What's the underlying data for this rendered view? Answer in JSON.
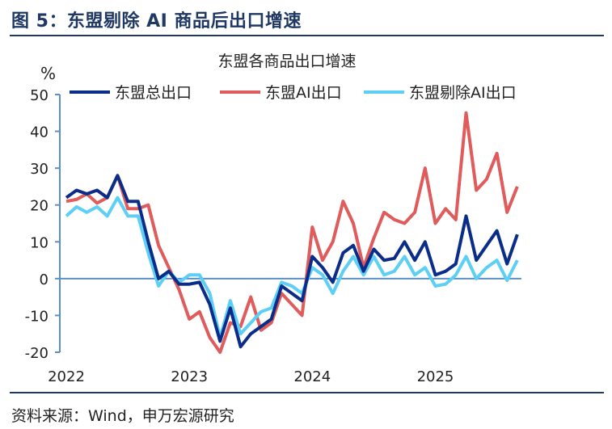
{
  "figure_title": "图 5：东盟剔除 AI 商品后出口增速",
  "source": "资料来源：Wind，申万宏源研究",
  "chart_data": {
    "type": "line",
    "title": "东盟各商品出口增速",
    "ylabel": "%",
    "xlabel": "",
    "ylim": [
      -20,
      50
    ],
    "yticks": [
      -20,
      -10,
      0,
      10,
      20,
      30,
      40,
      50
    ],
    "xtick_labels": [
      "2022",
      "2023",
      "2024",
      "2025"
    ],
    "x_start": "2022-01",
    "x_frequency": "monthly",
    "legend_position": "top",
    "grid": false,
    "series": [
      {
        "name": "东盟总出口",
        "color": "#0b2d8a",
        "values": [
          22,
          24,
          23,
          24,
          22,
          28,
          21,
          21,
          10,
          0,
          2,
          -1.5,
          -1.5,
          -1,
          -7,
          -17,
          -8,
          -18.5,
          -15,
          -13,
          -11,
          -2,
          -4,
          -6,
          6,
          3,
          -1,
          7,
          9,
          2,
          8,
          5,
          5.5,
          10,
          5,
          10,
          1,
          2,
          4,
          17,
          5,
          9,
          13,
          4,
          12
        ]
      },
      {
        "name": "东盟AI出口",
        "color": "#e05b5b",
        "values": [
          21,
          21.5,
          23,
          20.5,
          22,
          28,
          19,
          19,
          20,
          9,
          3,
          -3,
          -11,
          -9,
          -16,
          -20,
          -12,
          -13,
          -5,
          -14,
          -12,
          -4,
          -7,
          -10,
          14,
          5,
          10,
          21,
          15,
          3,
          11,
          18,
          16,
          15,
          18,
          30,
          15,
          19,
          16,
          45,
          24,
          27,
          34,
          18,
          25
        ]
      },
      {
        "name": "东盟剔除AI出口",
        "color": "#5dcff4",
        "values": [
          17,
          19.5,
          18,
          19.5,
          17,
          22,
          17,
          17,
          7,
          -2,
          2,
          -1,
          1,
          1,
          -4,
          -16,
          -6,
          -15,
          -12,
          -9,
          -8,
          -1,
          -2,
          -4,
          3,
          1,
          -4,
          2,
          6,
          1,
          6,
          1,
          2,
          6,
          1,
          3,
          -2,
          -1.5,
          1,
          6,
          0,
          3,
          5,
          -0.5,
          5
        ]
      }
    ]
  }
}
